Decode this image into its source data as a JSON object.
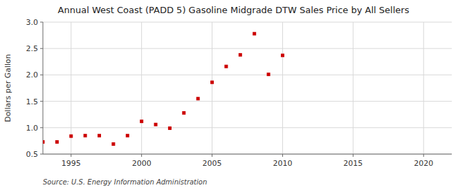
{
  "chart_data": {
    "type": "scatter",
    "title": "Annual West Coast (PADD 5) Gasoline Midgrade DTW Sales Price by All Sellers",
    "y_label": "Dollars per Gallon",
    "annotations": [
      "Source: U.S. Energy Information Administration"
    ],
    "x": [
      1993,
      1994,
      1995,
      1996,
      1997,
      1998,
      1999,
      2000,
      2001,
      2002,
      2003,
      2004,
      2005,
      2006,
      2007,
      2008,
      2009,
      2010
    ],
    "values": [
      0.73,
      0.73,
      0.84,
      0.85,
      0.85,
      0.69,
      0.85,
      1.12,
      1.06,
      0.99,
      1.28,
      1.55,
      1.86,
      2.16,
      2.38,
      2.78,
      2.01,
      2.37
    ],
    "color": "#cc0000",
    "marker": "square",
    "xlim": [
      1993,
      2022
    ],
    "ylim": [
      0.5,
      3.0
    ],
    "xticks": [
      1995,
      2000,
      2005,
      2010,
      2015,
      2020
    ],
    "yticks": [
      0.5,
      {
        "value": 1,
        "label": "1.0"
      },
      1.5,
      {
        "value": 2,
        "label": "2.0"
      },
      2.5,
      {
        "value": 3,
        "label": "3.0"
      }
    ],
    "grid": true
  }
}
